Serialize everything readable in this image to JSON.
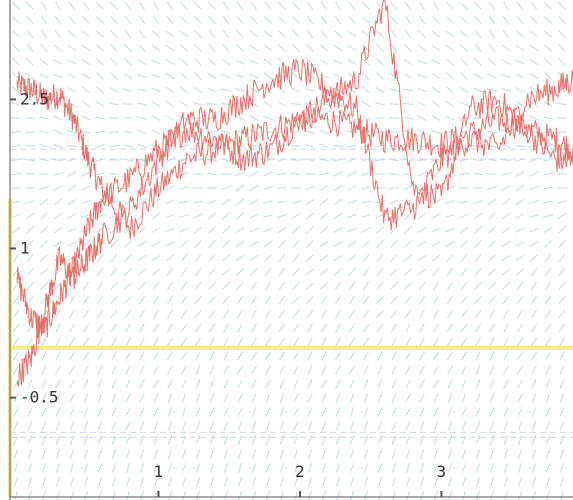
{
  "chart_data": {
    "type": "line",
    "title": "",
    "xlabel": "",
    "ylabel": "",
    "xlim": [
      -0.05,
      3.93
    ],
    "ylim": [
      -1.5,
      3.5
    ],
    "x_ticks": [
      {
        "value": 1,
        "label": "1"
      },
      {
        "value": 2,
        "label": "2"
      },
      {
        "value": 3,
        "label": "3"
      }
    ],
    "y_ticks": [
      {
        "value": -0.5,
        "label": "-0.5"
      },
      {
        "value": 1,
        "label": "1"
      },
      {
        "value": 2.5,
        "label": "2.5"
      }
    ],
    "grid": false,
    "background": "slope-field",
    "reference_line_y": 0.0,
    "series": [
      {
        "values_x": [
          0,
          0.1,
          0.2,
          0.3,
          0.4,
          0.5,
          0.6,
          0.8,
          1.0,
          1.2,
          1.4,
          1.6,
          1.8,
          2.0,
          2.2,
          2.4,
          2.6,
          2.8,
          3.0,
          3.2,
          3.4,
          3.6,
          3.8,
          3.93
        ],
        "values_y": [
          2.65,
          2.6,
          2.5,
          2.55,
          2.3,
          1.9,
          1.6,
          1.2,
          1.6,
          1.9,
          2.0,
          2.1,
          2.2,
          2.3,
          2.3,
          2.2,
          2.1,
          2.1,
          2.05,
          2.15,
          2.3,
          2.2,
          2.1,
          2.0
        ]
      },
      {
        "values_x": [
          0,
          0.1,
          0.2,
          0.3,
          0.4,
          0.5,
          0.6,
          0.8,
          1.0,
          1.2,
          1.4,
          1.6,
          1.8,
          2.0,
          2.2,
          2.4,
          2.6,
          2.8,
          3.0,
          3.2,
          3.4,
          3.6,
          3.8,
          3.93
        ],
        "values_y": [
          0.7,
          0.3,
          0.2,
          0.5,
          0.8,
          1.2,
          1.5,
          1.7,
          2.0,
          2.2,
          2.1,
          1.9,
          2.0,
          2.3,
          2.5,
          2.7,
          3.5,
          1.6,
          1.5,
          2.4,
          2.5,
          2.2,
          1.9,
          1.85
        ]
      },
      {
        "values_x": [
          0,
          0.1,
          0.2,
          0.3,
          0.4,
          0.5,
          0.6,
          0.8,
          1.0,
          1.2,
          1.4,
          1.6,
          1.8,
          2.0,
          2.2,
          2.4,
          2.6,
          2.8,
          3.0,
          3.2,
          3.4,
          3.6,
          3.8,
          3.93
        ],
        "values_y": [
          -0.3,
          -0.1,
          0.4,
          0.9,
          0.7,
          0.9,
          1.1,
          1.4,
          1.9,
          2.3,
          2.3,
          2.5,
          2.7,
          2.8,
          2.6,
          2.4,
          1.3,
          1.4,
          1.9,
          2.1,
          2.0,
          2.5,
          2.6,
          2.7
        ]
      }
    ],
    "colors": {
      "series": "#e8736c",
      "axis": "#555555",
      "reference_line": "#f7ec8a",
      "left_marker": "#f7ec8a",
      "slope_field": "#bcdde4",
      "dashed_guides": "#cfd9e8"
    }
  }
}
